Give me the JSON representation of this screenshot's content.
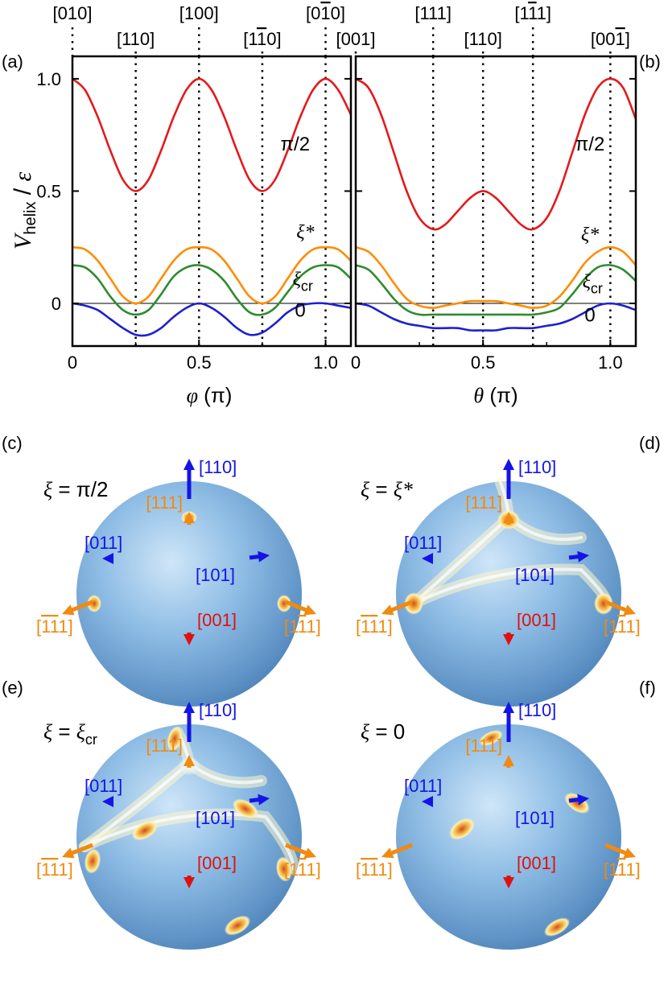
{
  "chart_data": [
    {
      "type": "line",
      "panel_label": "(a)",
      "xlabel_symbol": "φ",
      "xlabel_unit": " (π)",
      "ylabel_main": "V",
      "ylabel_sub": "helix",
      "ylabel_denom": "ε",
      "xlim": [
        0,
        1.1
      ],
      "ylim": [
        -0.19,
        1.1
      ],
      "x_ticks": [
        "0",
        "0.5",
        "1.0"
      ],
      "x_tick_values": [
        0,
        0.5,
        1.0
      ],
      "y_ticks": [
        "0",
        "0.5",
        "1.0"
      ],
      "y_tick_values": [
        0,
        0.5,
        1.0
      ],
      "direction_marks": [
        {
          "label_base": "[010]",
          "x": 0.0,
          "row": "top"
        },
        {
          "label_base": "[110]",
          "x": 0.25,
          "row": "bottom"
        },
        {
          "label_base": "[100]",
          "x": 0.5,
          "row": "top"
        },
        {
          "label_base": "[1",
          "label_bar": "1",
          "label_tail": "0]",
          "x": 0.75,
          "row": "bottom"
        },
        {
          "label_base": "[0",
          "label_bar": "1",
          "label_tail": "0]",
          "x": 1.0,
          "row": "top"
        }
      ],
      "series": [
        {
          "name": "π/2",
          "color": "#e31a1c",
          "x": [
            0,
            0.05,
            0.1,
            0.15,
            0.2,
            0.25,
            0.3,
            0.35,
            0.4,
            0.45,
            0.5,
            0.55,
            0.6,
            0.65,
            0.7,
            0.75,
            0.8,
            0.85,
            0.9,
            0.95,
            1.0,
            1.05,
            1.1
          ],
          "values": [
            1.0,
            0.95,
            0.83,
            0.68,
            0.55,
            0.5,
            0.55,
            0.68,
            0.83,
            0.95,
            1.0,
            0.95,
            0.83,
            0.68,
            0.55,
            0.5,
            0.55,
            0.68,
            0.83,
            0.95,
            1.0,
            0.95,
            0.84
          ]
        },
        {
          "name": "ξ*",
          "color": "#ff8c00",
          "x": [
            0,
            0.05,
            0.1,
            0.15,
            0.2,
            0.25,
            0.3,
            0.35,
            0.4,
            0.45,
            0.5,
            0.55,
            0.6,
            0.65,
            0.7,
            0.75,
            0.8,
            0.85,
            0.9,
            0.95,
            1.0,
            1.05,
            1.1
          ],
          "values": [
            0.25,
            0.24,
            0.19,
            0.11,
            0.03,
            0.0,
            0.03,
            0.11,
            0.19,
            0.24,
            0.25,
            0.24,
            0.19,
            0.11,
            0.03,
            0.0,
            0.03,
            0.11,
            0.19,
            0.24,
            0.25,
            0.24,
            0.19
          ]
        },
        {
          "name": "ξcr",
          "color": "#2e8b2e",
          "x": [
            0,
            0.05,
            0.1,
            0.15,
            0.2,
            0.25,
            0.3,
            0.35,
            0.4,
            0.45,
            0.5,
            0.55,
            0.6,
            0.65,
            0.7,
            0.75,
            0.8,
            0.85,
            0.9,
            0.95,
            1.0,
            1.05,
            1.1
          ],
          "values": [
            0.17,
            0.16,
            0.11,
            0.03,
            -0.03,
            -0.05,
            -0.03,
            0.04,
            0.12,
            0.16,
            0.17,
            0.15,
            0.1,
            0.02,
            -0.04,
            -0.05,
            -0.02,
            0.05,
            0.12,
            0.16,
            0.17,
            0.16,
            0.11
          ]
        },
        {
          "name": "0",
          "color": "#1f1fd0",
          "x": [
            0,
            0.05,
            0.1,
            0.15,
            0.2,
            0.25,
            0.3,
            0.35,
            0.4,
            0.45,
            0.5,
            0.55,
            0.6,
            0.65,
            0.7,
            0.75,
            0.8,
            0.85,
            0.9,
            0.95,
            1.0,
            1.05,
            1.1
          ],
          "values": [
            0.0,
            -0.01,
            -0.03,
            -0.07,
            -0.11,
            -0.14,
            -0.14,
            -0.11,
            -0.06,
            -0.02,
            0.0,
            -0.02,
            -0.06,
            -0.11,
            -0.14,
            -0.13,
            -0.09,
            -0.04,
            -0.01,
            0.0,
            0.0,
            -0.01,
            -0.02
          ]
        }
      ],
      "curve_labels": [
        {
          "text": "π/2",
          "x": 0.88,
          "y": 0.68
        },
        {
          "text": "ξ*",
          "x": 0.92,
          "y": 0.29
        },
        {
          "text": "ξ",
          "sub": "cr",
          "x": 0.91,
          "y": 0.08
        },
        {
          "text": "0",
          "x": 0.9,
          "y": -0.06
        }
      ]
    },
    {
      "type": "line",
      "panel_label": "(b)",
      "xlabel_symbol": "θ",
      "xlabel_unit": " (π)",
      "xlim": [
        0,
        1.1
      ],
      "ylim": [
        -0.19,
        1.1
      ],
      "x_ticks": [
        "0",
        "0.5",
        "1.0"
      ],
      "x_tick_values": [
        0,
        0.5,
        1.0
      ],
      "direction_marks": [
        {
          "label_base": "[001]",
          "x": 0.0,
          "row": "bottom"
        },
        {
          "label_base": "[111]",
          "x": 0.304,
          "row": "top"
        },
        {
          "label_base": "[110]",
          "x": 0.5,
          "row": "bottom"
        },
        {
          "label_base": "[1",
          "label_bar": "1",
          "label_tail": "1]",
          "x": 0.696,
          "row": "top"
        },
        {
          "label_base": "[00",
          "label_bar": "1",
          "label_tail": "]",
          "x": 1.0,
          "row": "bottom"
        }
      ],
      "series": [
        {
          "name": "π/2",
          "color": "#e31a1c",
          "x": [
            0,
            0.05,
            0.1,
            0.15,
            0.2,
            0.25,
            0.304,
            0.35,
            0.4,
            0.45,
            0.5,
            0.55,
            0.6,
            0.65,
            0.696,
            0.75,
            0.8,
            0.85,
            0.9,
            0.95,
            1.0,
            1.05,
            1.1
          ],
          "values": [
            1.0,
            0.96,
            0.84,
            0.67,
            0.5,
            0.38,
            0.33,
            0.35,
            0.41,
            0.47,
            0.5,
            0.47,
            0.41,
            0.35,
            0.33,
            0.38,
            0.5,
            0.67,
            0.84,
            0.96,
            1.0,
            0.96,
            0.82
          ]
        },
        {
          "name": "ξ*",
          "color": "#ff8c00",
          "x": [
            0,
            0.05,
            0.1,
            0.15,
            0.2,
            0.25,
            0.304,
            0.35,
            0.4,
            0.45,
            0.5,
            0.55,
            0.6,
            0.65,
            0.696,
            0.75,
            0.8,
            0.85,
            0.9,
            0.95,
            1.0,
            1.05,
            1.1
          ],
          "values": [
            0.25,
            0.23,
            0.17,
            0.09,
            0.02,
            -0.01,
            -0.02,
            -0.01,
            0.0,
            0.01,
            0.01,
            0.01,
            0.0,
            -0.01,
            -0.02,
            -0.01,
            0.03,
            0.1,
            0.18,
            0.23,
            0.25,
            0.23,
            0.17
          ]
        },
        {
          "name": "ξcr",
          "color": "#2e8b2e",
          "x": [
            0,
            0.05,
            0.1,
            0.15,
            0.2,
            0.25,
            0.304,
            0.35,
            0.4,
            0.45,
            0.5,
            0.55,
            0.6,
            0.65,
            0.696,
            0.75,
            0.8,
            0.85,
            0.9,
            0.95,
            1.0,
            1.05,
            1.1
          ],
          "values": [
            0.17,
            0.15,
            0.09,
            0.02,
            -0.03,
            -0.05,
            -0.05,
            -0.05,
            -0.05,
            -0.05,
            -0.05,
            -0.05,
            -0.05,
            -0.05,
            -0.05,
            -0.04,
            -0.02,
            0.04,
            0.11,
            0.16,
            0.17,
            0.15,
            0.1
          ]
        },
        {
          "name": "0",
          "color": "#1f1fd0",
          "x": [
            0,
            0.05,
            0.1,
            0.15,
            0.2,
            0.25,
            0.304,
            0.35,
            0.4,
            0.45,
            0.5,
            0.55,
            0.6,
            0.65,
            0.696,
            0.75,
            0.8,
            0.85,
            0.9,
            0.95,
            1.0,
            1.05,
            1.1
          ],
          "values": [
            0.0,
            -0.01,
            -0.04,
            -0.07,
            -0.09,
            -0.1,
            -0.11,
            -0.11,
            -0.11,
            -0.12,
            -0.12,
            -0.12,
            -0.11,
            -0.11,
            -0.11,
            -0.1,
            -0.09,
            -0.07,
            -0.04,
            -0.01,
            0.0,
            -0.01,
            -0.03
          ]
        }
      ],
      "curve_labels": [
        {
          "text": "π/2",
          "x": 0.92,
          "y": 0.68
        },
        {
          "text": "ξ*",
          "x": 0.92,
          "y": 0.28
        },
        {
          "text": "ξ",
          "sub": "cr",
          "x": 0.93,
          "y": 0.07
        },
        {
          "text": "0",
          "x": 0.92,
          "y": -0.08
        }
      ]
    }
  ],
  "spheres": [
    {
      "panel_label": "(c)",
      "xi_symbol": "ξ",
      "xi_value": "π/2",
      "xi_sub": "",
      "hotspots": "corners"
    },
    {
      "panel_label": "(d)",
      "xi_symbol": "ξ",
      "xi_value": "ξ*",
      "xi_sub": "",
      "hotspots": "ridges"
    },
    {
      "panel_label": "(e)",
      "xi_symbol": "ξ",
      "xi_value": "ξ",
      "xi_sub": "cr",
      "hotspots": "ridges-spots"
    },
    {
      "panel_label": "(f)",
      "xi_symbol": "ξ",
      "xi_value": "0",
      "xi_sub": "",
      "hotspots": "spots"
    }
  ],
  "sphere_directions": {
    "d110": "[110]",
    "d111": "[111]",
    "d011": "[011]",
    "d101": "[101]",
    "d001": "[001]",
    "dm111_base": "[",
    "dm111_bar": "1",
    "dm111_mid_bar": "1",
    "dm111_tail": "1]",
    "d1m11_base": "[1",
    "d1m11_bar": "1",
    "d1m11_tail": "1]"
  },
  "colors": {
    "red": "#e31a1c",
    "orange": "#ff8c00",
    "green": "#2e8b2e",
    "blue": "#1f1fd0",
    "dir_blue": "#1414e6",
    "dir_red": "#e01010",
    "dir_orange": "#f08a10",
    "sphere": "#88b8e0"
  }
}
